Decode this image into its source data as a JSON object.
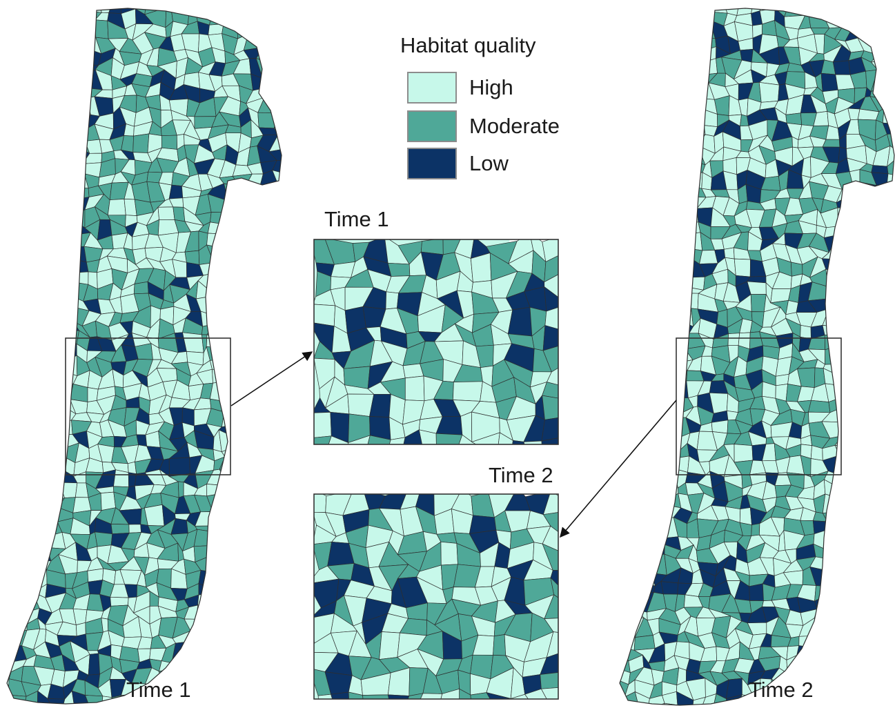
{
  "legend": {
    "title": "Habitat quality",
    "classes": [
      {
        "label": "High",
        "color": "#c7f8ea"
      },
      {
        "label": "Moderate",
        "color": "#4fa898"
      },
      {
        "label": "Low",
        "color": "#0c3366"
      }
    ]
  },
  "maps": {
    "left_label": "Time 1",
    "right_label": "Time 2",
    "inset_top_label": "Time 1",
    "inset_bottom_label": "Time 2"
  },
  "colors": {
    "outline": "#2e2e2e",
    "frame": "#333333",
    "arrow": "#111111"
  }
}
